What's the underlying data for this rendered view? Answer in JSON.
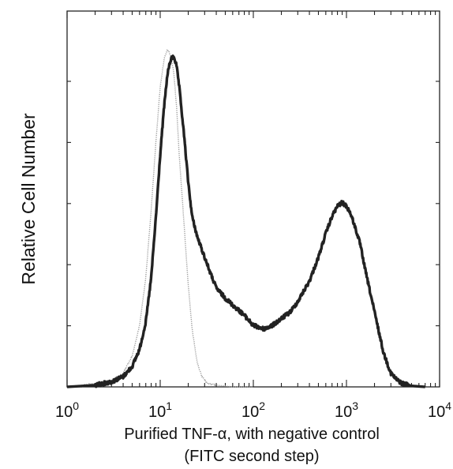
{
  "chart_data": {
    "type": "line",
    "xlabel": "Purified TNF-α, with negative control",
    "xlabel_line2": "(FITC second step)",
    "ylabel": "Relative Cell Number",
    "x_scale": "log",
    "xlim": [
      1,
      10000
    ],
    "ylim": [
      0,
      100
    ],
    "x_ticks": [
      {
        "value": 1,
        "base": "10",
        "exp": "0"
      },
      {
        "value": 10,
        "base": "10",
        "exp": "1"
      },
      {
        "value": 100,
        "base": "10",
        "exp": "2"
      },
      {
        "value": 1000,
        "base": "10",
        "exp": "3"
      },
      {
        "value": 10000,
        "base": "10",
        "exp": "4"
      }
    ],
    "y_tick_count": 5,
    "grid": false,
    "legend": "none",
    "series": [
      {
        "style": "light dotted grey",
        "color": "#9a9a9a",
        "x": [
          1,
          1.5,
          2,
          3,
          4,
          5,
          6,
          7,
          8,
          9,
          10,
          11,
          12,
          13,
          14,
          15,
          16,
          18,
          20,
          22,
          25,
          28,
          32,
          40,
          60,
          100
        ],
        "y": [
          0,
          0.5,
          1,
          2,
          4,
          9,
          18,
          32,
          52,
          72,
          88,
          96,
          99,
          97,
          92,
          82,
          68,
          48,
          30,
          17,
          7,
          3,
          1,
          0.5,
          0,
          0
        ]
      },
      {
        "style": "dark noisy",
        "color": "#222222",
        "x": [
          1,
          2,
          3,
          4,
          5,
          6,
          7,
          8,
          9,
          10,
          11,
          12,
          13,
          14,
          15,
          16,
          18,
          20,
          22,
          25,
          30,
          35,
          40,
          50,
          60,
          80,
          100,
          130,
          160,
          200,
          250,
          300,
          400,
          500,
          600,
          700,
          800,
          900,
          1000,
          1100,
          1200,
          1400,
          1600,
          2000,
          2500,
          3000,
          3500,
          4000,
          5000,
          7000
        ],
        "y": [
          0,
          0.5,
          1.5,
          3,
          6,
          11,
          19,
          32,
          50,
          68,
          82,
          92,
          96,
          97,
          94,
          88,
          74,
          60,
          50,
          44,
          38,
          33,
          29,
          26,
          24,
          21,
          18,
          17,
          18,
          20,
          22,
          25,
          31,
          38,
          45,
          50,
          53,
          54,
          53,
          51,
          48,
          42,
          34,
          22,
          10,
          4,
          2,
          1,
          0.3,
          0
        ]
      }
    ]
  }
}
